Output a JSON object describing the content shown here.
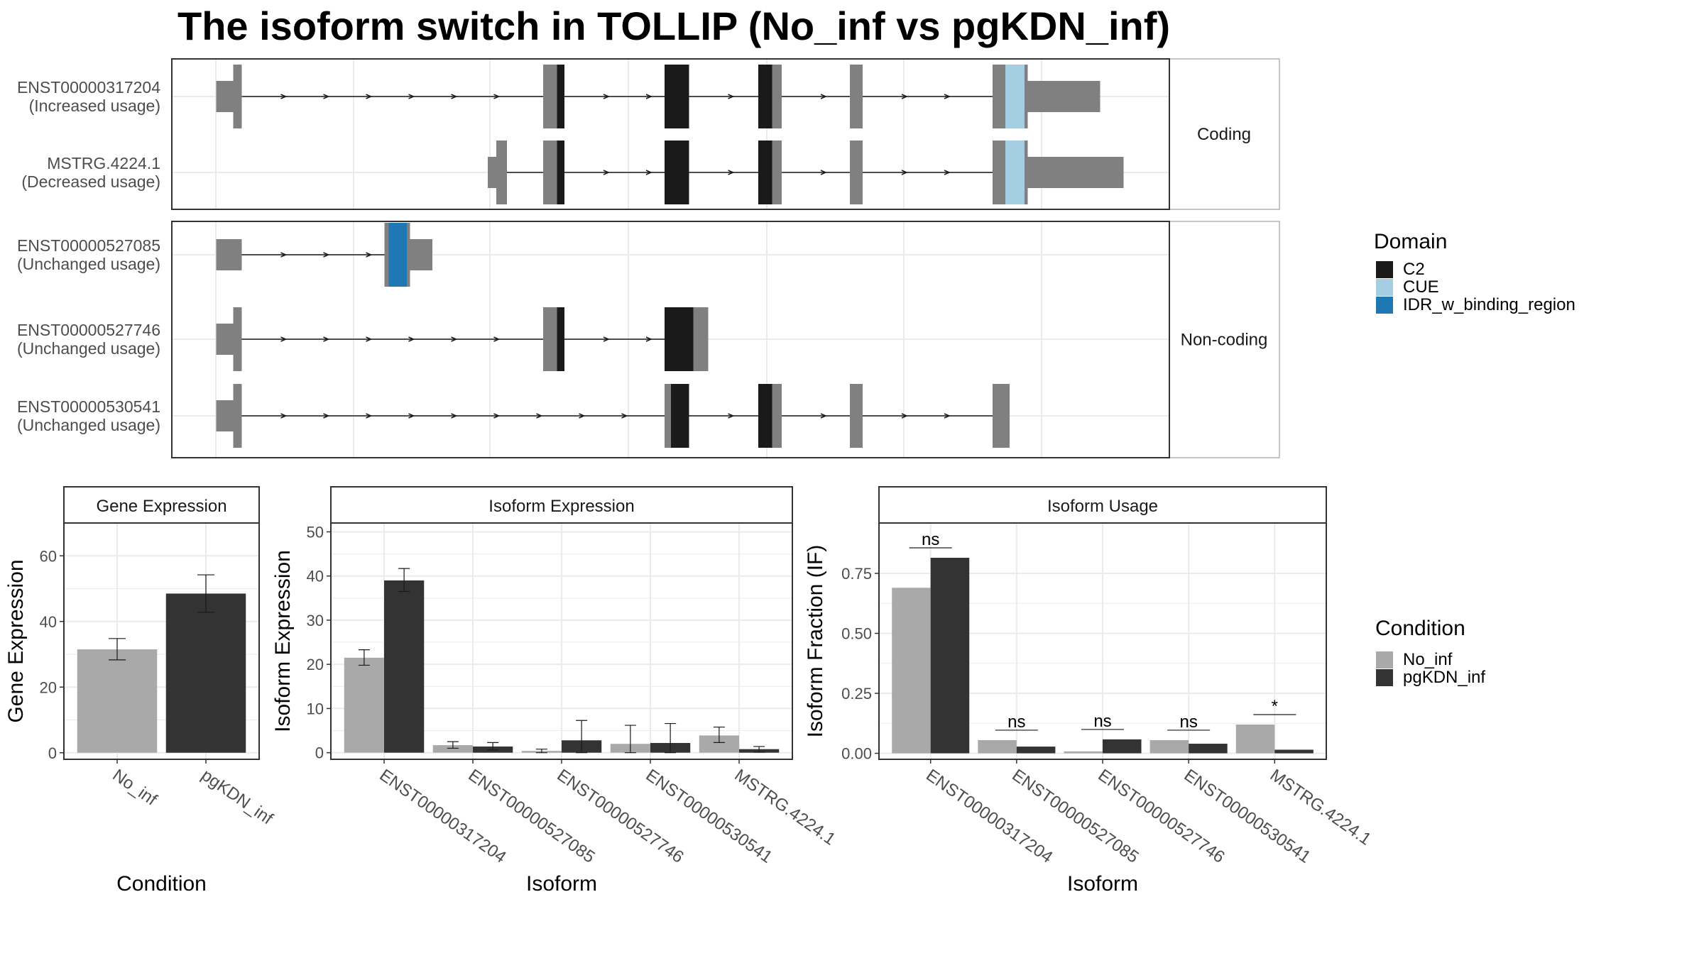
{
  "title": "The isoform switch in TOLLIP (No_inf vs pgKDN_inf)",
  "colors": {
    "exon": "#808080",
    "C2": "#1a1a1a",
    "CUE": "#a6cee3",
    "IDR_w_binding_region": "#1f78b4",
    "No_inf": "#a9a9a9",
    "pgKDN_inf": "#333333",
    "panel_border": "#333333",
    "strip_border": "#b3b3b3",
    "grid": "#ebebeb",
    "text": "#4d4d4d"
  },
  "structure": {
    "strips": {
      "coding": "Coding",
      "noncoding": "Non-coding"
    },
    "legend": {
      "title": "Domain",
      "items": [
        {
          "key": "C2",
          "label": "C2"
        },
        {
          "key": "CUE",
          "label": "CUE"
        },
        {
          "key": "IDR_w_binding_region",
          "label": "IDR_w_binding_region"
        }
      ]
    },
    "transcripts": [
      {
        "name": "ENST00000317204",
        "usage": "(Increased usage)",
        "group": "coding",
        "exons": [
          [
            203,
            219,
            "utr"
          ],
          [
            219,
            227,
            "cds"
          ],
          [
            510,
            530,
            "cds"
          ],
          [
            624,
            647,
            "cds"
          ],
          [
            712,
            734,
            "cds"
          ],
          [
            798,
            810,
            "cds"
          ],
          [
            932,
            965,
            "cds"
          ],
          [
            965,
            1033,
            "utr"
          ]
        ],
        "domains": [
          [
            523,
            530,
            "C2"
          ],
          [
            624,
            647,
            "C2"
          ],
          [
            712,
            725,
            "C2"
          ],
          [
            944,
            962,
            "CUE"
          ]
        ]
      },
      {
        "name": "MSTRG.4224.1",
        "usage": "(Decreased usage)",
        "group": "coding",
        "exons": [
          [
            458,
            466,
            "utr"
          ],
          [
            466,
            476,
            "cds"
          ],
          [
            510,
            530,
            "cds"
          ],
          [
            624,
            647,
            "cds"
          ],
          [
            712,
            734,
            "cds"
          ],
          [
            798,
            810,
            "cds"
          ],
          [
            932,
            965,
            "cds"
          ],
          [
            965,
            1055,
            "utr"
          ]
        ],
        "domains": [
          [
            523,
            530,
            "C2"
          ],
          [
            624,
            647,
            "C2"
          ],
          [
            712,
            725,
            "C2"
          ],
          [
            944,
            962,
            "CUE"
          ]
        ]
      },
      {
        "name": "ENST00000527085",
        "usage": "(Unchanged usage)",
        "group": "noncoding",
        "exons": [
          [
            203,
            227,
            "utr"
          ],
          [
            361,
            385,
            "cds"
          ],
          [
            385,
            406,
            "utr"
          ]
        ],
        "domains": [
          [
            365,
            382,
            "IDR_w_binding_region"
          ]
        ]
      },
      {
        "name": "ENST00000527746",
        "usage": "(Unchanged usage)",
        "group": "noncoding",
        "exons": [
          [
            203,
            219,
            "utr"
          ],
          [
            219,
            227,
            "cds"
          ],
          [
            510,
            530,
            "cds"
          ],
          [
            624,
            665,
            "cds"
          ]
        ],
        "domains": [
          [
            523,
            530,
            "C2"
          ],
          [
            624,
            651,
            "C2"
          ]
        ]
      },
      {
        "name": "ENST00000530541",
        "usage": "(Unchanged usage)",
        "group": "noncoding",
        "exons": [
          [
            203,
            219,
            "utr"
          ],
          [
            219,
            227,
            "cds"
          ],
          [
            624,
            647,
            "cds"
          ],
          [
            712,
            734,
            "cds"
          ],
          [
            798,
            810,
            "cds"
          ],
          [
            932,
            948,
            "cds"
          ]
        ],
        "domains": [
          [
            630,
            647,
            "C2"
          ],
          [
            712,
            725,
            "C2"
          ]
        ]
      }
    ]
  },
  "chart_data": [
    {
      "type": "bar",
      "title": "Gene Expression",
      "xlabel": "Condition",
      "ylabel": "Gene Expression",
      "categories": [
        "No_inf",
        "pgKDN_inf"
      ],
      "values": [
        31.5,
        48.5
      ],
      "errors": [
        [
          28.3,
          34.8
        ],
        [
          42.8,
          54.2
        ]
      ],
      "ylim": [
        -2,
        70
      ],
      "yticks": [
        0,
        20,
        40,
        60
      ]
    },
    {
      "type": "bar",
      "title": "Isoform Expression",
      "xlabel": "Isoform",
      "ylabel": "Isoform Expression",
      "categories": [
        "ENST00000317204",
        "ENST00000527085",
        "ENST00000527746",
        "ENST00000530541",
        "MSTRG.4224.1"
      ],
      "series": [
        {
          "name": "No_inf",
          "values": [
            21.5,
            1.7,
            0.4,
            2.0,
            3.9
          ],
          "errors": [
            [
              19.8,
              23.3
            ],
            [
              1.0,
              2.5
            ],
            [
              0.0,
              0.8
            ],
            [
              0.0,
              6.2
            ],
            [
              2.3,
              5.8
            ]
          ]
        },
        {
          "name": "pgKDN_inf",
          "values": [
            39.0,
            1.4,
            2.8,
            2.2,
            0.8
          ],
          "errors": [
            [
              36.5,
              41.7
            ],
            [
              0.6,
              2.3
            ],
            [
              0.0,
              7.3
            ],
            [
              0.0,
              6.6
            ],
            [
              0.1,
              1.4
            ]
          ]
        }
      ],
      "ylim": [
        -1.5,
        52
      ],
      "yticks": [
        0,
        10,
        20,
        30,
        40,
        50
      ]
    },
    {
      "type": "bar",
      "title": "Isoform Usage",
      "xlabel": "Isoform",
      "ylabel": "Isoform Fraction (IF)",
      "categories": [
        "ENST00000317204",
        "ENST00000527085",
        "ENST00000527746",
        "ENST00000530541",
        "MSTRG.4224.1"
      ],
      "series": [
        {
          "name": "No_inf",
          "values": [
            0.69,
            0.055,
            0.008,
            0.055,
            0.12
          ]
        },
        {
          "name": "pgKDN_inf",
          "values": [
            0.815,
            0.028,
            0.058,
            0.04,
            0.015
          ]
        }
      ],
      "significance": [
        "ns",
        "ns",
        "ns",
        "ns",
        "*"
      ],
      "ylim": [
        -0.025,
        0.96
      ],
      "yticks": [
        0.0,
        0.25,
        0.5,
        0.75
      ],
      "yticklabels": [
        "0.00",
        "0.25",
        "0.50",
        "0.75"
      ]
    }
  ],
  "condition_legend": {
    "title": "Condition",
    "items": [
      {
        "key": "No_inf",
        "label": "No_inf"
      },
      {
        "key": "pgKDN_inf",
        "label": "pgKDN_inf"
      }
    ]
  }
}
